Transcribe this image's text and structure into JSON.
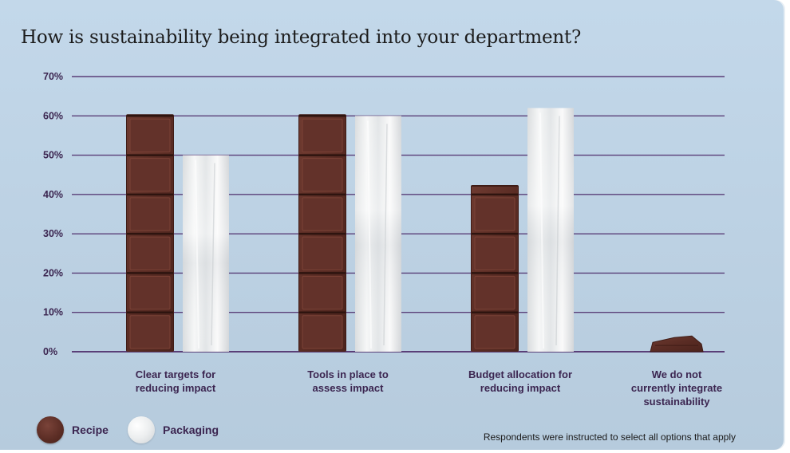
{
  "chart_data": {
    "type": "bar",
    "title": "How is sustainability being integrated into your department?",
    "categories": [
      [
        "Clear targets for",
        "reducing impact"
      ],
      [
        "Tools in place to",
        "assess impact"
      ],
      [
        "Budget allocation for",
        "reducing impact"
      ],
      [
        "We do not",
        "currently integrate",
        "sustainability"
      ]
    ],
    "series": [
      {
        "name": "Recipe",
        "values": [
          60,
          60,
          42,
          4
        ]
      },
      {
        "name": "Packaging",
        "values": [
          50,
          60,
          62,
          0
        ]
      }
    ],
    "ylim": [
      0,
      70
    ],
    "yticks": [
      0,
      10,
      20,
      30,
      40,
      50,
      60,
      70
    ],
    "tick_suffix": "%",
    "grid": true,
    "legend_position": "bottom-left",
    "footnote": "Respondents were instructed to select all options that apply"
  },
  "colors": {
    "chocolate": "#5c2d25",
    "chocolate_dark": "#3f1c16",
    "foil": "#e9ebec",
    "grid": "#5a3f78",
    "axis_text": "#3b2550",
    "background": "#bfd3e5"
  }
}
